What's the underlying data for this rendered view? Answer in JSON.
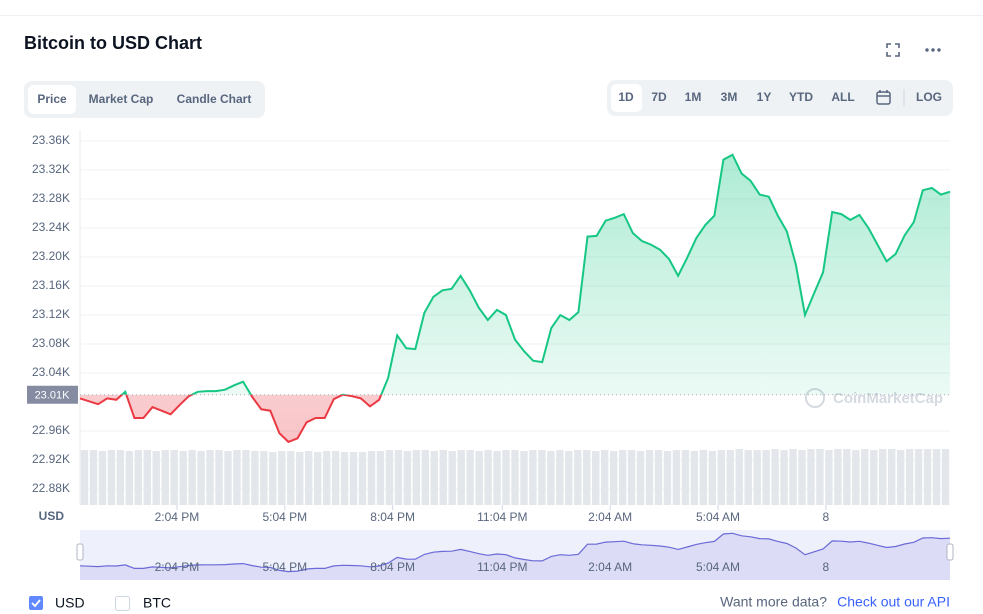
{
  "chart_data": {
    "type": "line",
    "title": "Bitcoin to USD Chart",
    "ylabel": "USD",
    "values": [
      23.005,
      23.001,
      22.997,
      23.005,
      23.003,
      23.014,
      22.978,
      22.978,
      22.993,
      22.988,
      22.983,
      22.996,
      23.008,
      23.014,
      23.015,
      23.015,
      23.017,
      23.023,
      23.028,
      23.007,
      22.99,
      22.988,
      22.957,
      22.945,
      22.95,
      22.972,
      22.978,
      22.978,
      23.004,
      23.01,
      23.008,
      23.005,
      22.994,
      23.003,
      23.033,
      23.092,
      23.074,
      23.073,
      23.123,
      23.145,
      23.154,
      23.156,
      23.174,
      23.154,
      23.13,
      23.113,
      23.127,
      23.12,
      23.086,
      23.07,
      23.057,
      23.055,
      23.102,
      23.12,
      23.113,
      23.124,
      23.228,
      23.229,
      23.25,
      23.254,
      23.259,
      23.233,
      23.222,
      23.217,
      23.21,
      23.197,
      23.174,
      23.199,
      23.226,
      23.244,
      23.257,
      23.334,
      23.341,
      23.315,
      23.305,
      23.286,
      23.283,
      23.257,
      23.235,
      23.189,
      23.12,
      23.15,
      23.179,
      23.262,
      23.259,
      23.251,
      23.258,
      23.24,
      23.217,
      23.194,
      23.204,
      23.23,
      23.248,
      23.292,
      23.295,
      23.286,
      23.29
    ],
    "volume": [
      55,
      55,
      54,
      55,
      55,
      54,
      55,
      55,
      54,
      55,
      55,
      54,
      55,
      54,
      55,
      55,
      54,
      55,
      55,
      54,
      54,
      53,
      54,
      54,
      53,
      54,
      53,
      54,
      54,
      53,
      53,
      53,
      54,
      54,
      55,
      55,
      54,
      55,
      55,
      54,
      55,
      54,
      55,
      55,
      54,
      55,
      54,
      55,
      55,
      54,
      55,
      55,
      54,
      55,
      54,
      55,
      55,
      54,
      55,
      54,
      55,
      55,
      54,
      55,
      55,
      54,
      55,
      55,
      54,
      55,
      54,
      55,
      55,
      56,
      55,
      55,
      55,
      56,
      55,
      56,
      55,
      56,
      56,
      55,
      56,
      56,
      55,
      56,
      55,
      56,
      56,
      55,
      56,
      56,
      56,
      56,
      56
    ],
    "xlim": [
      0,
      96
    ],
    "xticks": [
      {
        "value": 10.7,
        "label": "2:04 PM"
      },
      {
        "value": 22.6,
        "label": "5:04 PM"
      },
      {
        "value": 34.5,
        "label": "8:04 PM"
      },
      {
        "value": 46.6,
        "label": "11:04 PM"
      },
      {
        "value": 58.5,
        "label": "2:04 AM"
      },
      {
        "value": 70.4,
        "label": "5:04 AM"
      },
      {
        "value": 82.3,
        "label": "8"
      }
    ],
    "ylim": [
      22.858,
      23.375
    ],
    "yticks": [
      {
        "value": 22.88,
        "label": "22.88K"
      },
      {
        "value": 22.92,
        "label": "22.92K"
      },
      {
        "value": 22.96,
        "label": "22.96K"
      },
      {
        "value": 23.04,
        "label": "23.04K"
      },
      {
        "value": 23.08,
        "label": "23.08K"
      },
      {
        "value": 23.12,
        "label": "23.12K"
      },
      {
        "value": 23.16,
        "label": "23.16K"
      },
      {
        "value": 23.2,
        "label": "23.20K"
      },
      {
        "value": 23.24,
        "label": "23.24K"
      },
      {
        "value": 23.28,
        "label": "23.28K"
      },
      {
        "value": 23.32,
        "label": "23.32K"
      },
      {
        "value": 23.36,
        "label": "23.36K"
      }
    ],
    "y2lim": [
      0,
      100
    ],
    "baseline": {
      "value": 23.01,
      "label": "23.01K"
    },
    "up_color": "#16c784",
    "down_color": "#ea3943",
    "volume_color": "#e3e6ea",
    "navigator_color": "#6a6ad8",
    "grid": true,
    "watermark": "CoinMarketCap"
  },
  "tabs": [
    "Price",
    "Market Cap",
    "Candle Chart"
  ],
  "ranges": [
    "1D",
    "7D",
    "1M",
    "3M",
    "1Y",
    "YTD",
    "ALL"
  ],
  "log_button": "LOG",
  "currencies": [
    "USD",
    "BTC"
  ],
  "footer": {
    "text": "Want more data?",
    "link": "Check out our API"
  }
}
